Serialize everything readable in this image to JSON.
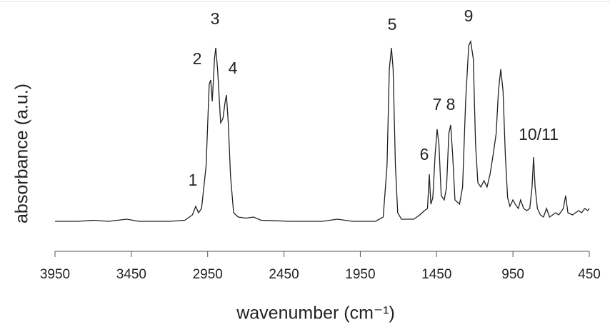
{
  "chart_data": {
    "type": "line",
    "xlabel": "wavenumber (cm⁻¹)",
    "ylabel": "absorbance (a.u.)",
    "xlim": [
      3950,
      450
    ],
    "xticks": [
      3950,
      3450,
      2950,
      2450,
      1950,
      1450,
      950,
      450
    ],
    "ylim": [
      0,
      1
    ],
    "annotations": [
      "1",
      "2",
      "3",
      "4",
      "5",
      "6",
      "7",
      "8",
      "9",
      "10/11"
    ],
    "x": [
      3950,
      3800,
      3700,
      3600,
      3480,
      3400,
      3200,
      3100,
      3050,
      3028,
      3010,
      2990,
      2960,
      2940,
      2930,
      2920,
      2905,
      2897,
      2885,
      2865,
      2850,
      2835,
      2827,
      2815,
      2800,
      2780,
      2750,
      2700,
      2650,
      2600,
      2400,
      2200,
      2100,
      2000,
      1850,
      1800,
      1775,
      1760,
      1746,
      1735,
      1720,
      1705,
      1680,
      1600,
      1560,
      1530,
      1510,
      1498,
      1488,
      1475,
      1460,
      1447,
      1435,
      1420,
      1400,
      1385,
      1370,
      1358,
      1345,
      1330,
      1300,
      1280,
      1260,
      1240,
      1227,
      1210,
      1195,
      1180,
      1160,
      1140,
      1120,
      1100,
      1080,
      1060,
      1045,
      1030,
      1015,
      1000,
      985,
      970,
      950,
      935,
      915,
      900,
      880,
      860,
      840,
      825,
      815,
      805,
      790,
      770,
      750,
      730,
      710,
      690,
      670,
      650,
      620,
      605,
      590,
      560,
      540,
      520,
      500,
      480,
      460,
      450
    ],
    "series": [
      {
        "color": "#222222",
        "values": [
          0.14,
          0.14,
          0.145,
          0.14,
          0.15,
          0.14,
          0.14,
          0.145,
          0.17,
          0.21,
          0.18,
          0.2,
          0.4,
          0.78,
          0.8,
          0.7,
          0.9,
          0.95,
          0.85,
          0.6,
          0.62,
          0.7,
          0.73,
          0.6,
          0.35,
          0.18,
          0.16,
          0.155,
          0.16,
          0.145,
          0.14,
          0.14,
          0.15,
          0.14,
          0.14,
          0.16,
          0.4,
          0.85,
          0.95,
          0.85,
          0.4,
          0.18,
          0.15,
          0.15,
          0.17,
          0.19,
          0.2,
          0.36,
          0.22,
          0.25,
          0.45,
          0.57,
          0.5,
          0.26,
          0.24,
          0.3,
          0.55,
          0.59,
          0.45,
          0.24,
          0.22,
          0.3,
          0.7,
          0.96,
          0.98,
          0.9,
          0.5,
          0.32,
          0.3,
          0.33,
          0.3,
          0.36,
          0.45,
          0.55,
          0.75,
          0.85,
          0.75,
          0.45,
          0.25,
          0.21,
          0.24,
          0.22,
          0.2,
          0.24,
          0.2,
          0.19,
          0.2,
          0.3,
          0.44,
          0.3,
          0.2,
          0.17,
          0.16,
          0.2,
          0.16,
          0.17,
          0.18,
          0.17,
          0.2,
          0.26,
          0.18,
          0.17,
          0.18,
          0.19,
          0.18,
          0.2,
          0.19,
          0.2
        ]
      }
    ]
  }
}
